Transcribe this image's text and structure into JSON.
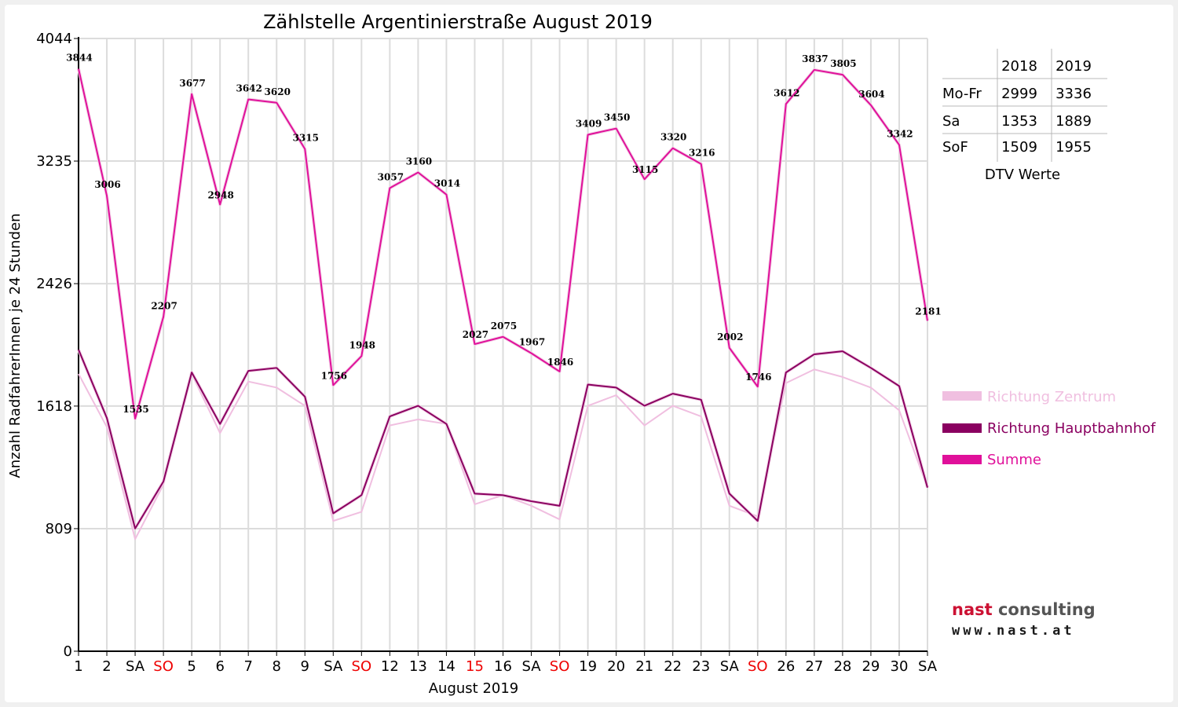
{
  "chart_data": {
    "type": "line",
    "title": "Zählstelle Argentinierstraße August 2019",
    "xlabel": "August 2019",
    "ylabel": "Anzahl RadfahrerInnen je 24 Stunden",
    "ylim": [
      0,
      4044
    ],
    "y_ticks": [
      "0",
      "809",
      "1618",
      "2426",
      "3235",
      "4044"
    ],
    "grid": true,
    "legend_position": "right",
    "categories": [
      "1",
      "2",
      "SA",
      "SO",
      "5",
      "6",
      "7",
      "8",
      "9",
      "SA",
      "SO",
      "12",
      "13",
      "14",
      "15",
      "16",
      "SA",
      "SO",
      "19",
      "20",
      "21",
      "22",
      "23",
      "SA",
      "SO",
      "26",
      "27",
      "28",
      "29",
      "30",
      "SA"
    ],
    "red_categories": [
      3,
      10,
      14,
      17,
      24
    ],
    "series": [
      {
        "name": "Richtung Zentrum",
        "color": "#f0bfe0",
        "values": [
          1830,
          1480,
          740,
          1100,
          1830,
          1440,
          1780,
          1740,
          1620,
          860,
          920,
          1490,
          1530,
          1500,
          970,
          1030,
          960,
          870,
          1620,
          1690,
          1490,
          1620,
          1550,
          960,
          890,
          1770,
          1860,
          1810,
          1740,
          1590,
          1080
        ]
      },
      {
        "name": "Richtung Hauptbahnhof",
        "color": "#8a0060",
        "values": [
          1990,
          1540,
          810,
          1120,
          1840,
          1500,
          1850,
          1870,
          1680,
          910,
          1030,
          1550,
          1620,
          1500,
          1040,
          1030,
          990,
          960,
          1760,
          1740,
          1620,
          1700,
          1660,
          1040,
          860,
          1840,
          1960,
          1980,
          1870,
          1750,
          1080
        ]
      },
      {
        "name": "Summe",
        "color": "#e0109a",
        "values": [
          3844,
          3006,
          1535,
          2207,
          3677,
          2948,
          3642,
          3620,
          3315,
          1756,
          1948,
          3057,
          3160,
          3014,
          2027,
          2075,
          1967,
          1846,
          3409,
          3450,
          3115,
          3320,
          3216,
          2002,
          1746,
          3612,
          3837,
          3805,
          3604,
          3342,
          2181
        ]
      }
    ]
  },
  "legend": {
    "items": [
      {
        "label": "Richtung Zentrum",
        "color": "#f0bfe0"
      },
      {
        "label": "Richtung Hauptbahnhof",
        "color": "#8a0060"
      },
      {
        "label": "Summe",
        "color": "#e0109a"
      }
    ]
  },
  "dtv_table": {
    "headers": [
      "",
      "2018",
      "2019"
    ],
    "rows": [
      [
        "Mo-Fr",
        "2999",
        "3336"
      ],
      [
        "Sa",
        "1353",
        "1889"
      ],
      [
        "SoF",
        "1509",
        "1955"
      ]
    ],
    "caption": "DTV Werte"
  },
  "logo": {
    "name": "nast consulting",
    "url": "www.nast.at",
    "colors": {
      "nast": "#cc1133",
      "consulting": "#444444"
    }
  }
}
